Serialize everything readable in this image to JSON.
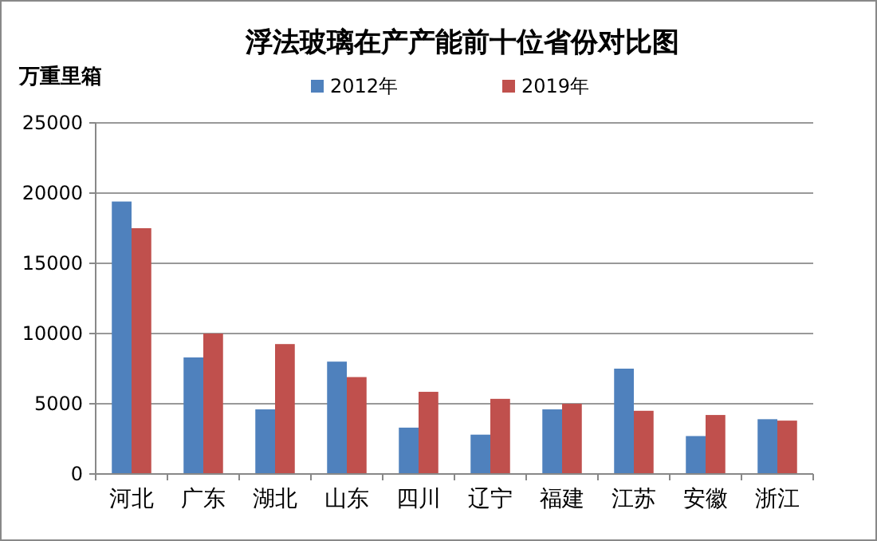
{
  "chart_data": {
    "type": "bar",
    "title": "浮法玻璃在产产能前十位省份对比图",
    "ylabel": "万重里箱",
    "categories": [
      "河北",
      "广东",
      "湖北",
      "山东",
      "四川",
      "辽宁",
      "福建",
      "江苏",
      "安徽",
      "浙江"
    ],
    "series": [
      {
        "name": "2012年",
        "color": "#4f81bd",
        "values": [
          19400,
          8300,
          4600,
          8000,
          3300,
          2800,
          4600,
          7500,
          2700,
          3900
        ]
      },
      {
        "name": "2019年",
        "color": "#c0504d",
        "values": [
          17500,
          10000,
          9250,
          6900,
          5850,
          5350,
          5000,
          4500,
          4200,
          3800
        ]
      }
    ],
    "ylim": [
      0,
      25000
    ],
    "yticks": [
      0,
      5000,
      10000,
      15000,
      20000,
      25000
    ],
    "grid": "y",
    "legend": "top"
  }
}
